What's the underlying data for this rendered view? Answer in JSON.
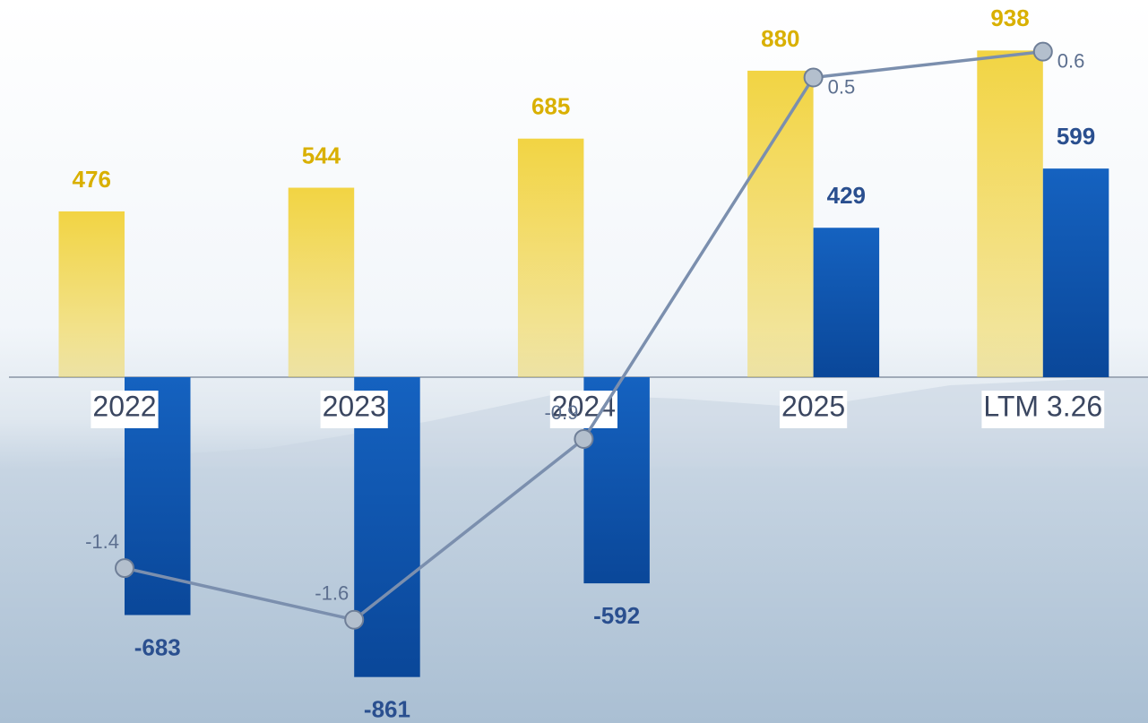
{
  "chart_data": {
    "type": "bar_line",
    "categories": [
      "2022",
      "2023",
      "2024",
      "2025",
      "LTM 3.26"
    ],
    "series": [
      {
        "color": "#f2d443",
        "values": [
          476,
          544,
          685,
          880,
          938
        ]
      },
      {
        "color": "#1562c0",
        "values": [
          -683,
          -861,
          -592,
          429,
          599
        ]
      },
      {
        "color": "#7b8fae",
        "values": [
          -1.4,
          -1.6,
          -0.9,
          0.5,
          0.6
        ],
        "axis": "y2"
      }
    ],
    "ylim": [
      -993,
      1083
    ],
    "y2lim": [
      -2.0,
      0.8
    ]
  }
}
